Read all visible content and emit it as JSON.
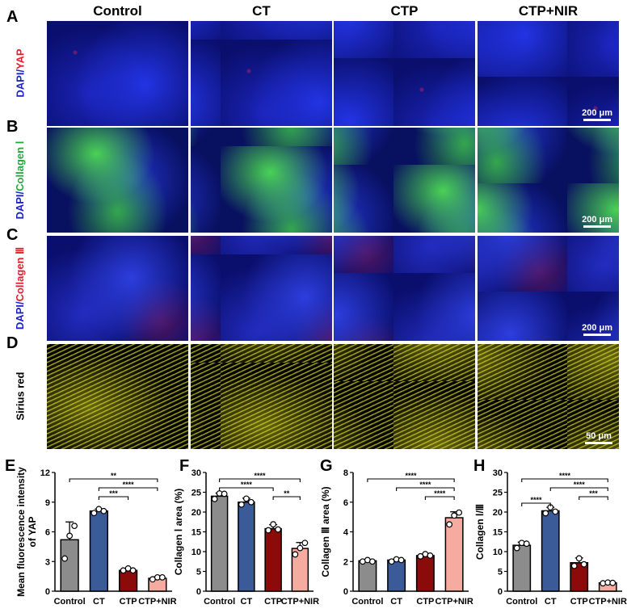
{
  "panel_letters": [
    "A",
    "B",
    "C",
    "D",
    "E",
    "F",
    "G",
    "H"
  ],
  "columns": [
    "Control",
    "CT",
    "CTP",
    "CTP+NIR"
  ],
  "rows": [
    {
      "label_a": "DAPI/",
      "label_b": "YAP",
      "color_b": "#e0202a",
      "style": "fl",
      "scale": "200 μm"
    },
    {
      "label_a": "DAPI/",
      "label_b": "Collagen Ⅰ",
      "color_b": "#22a83a",
      "style": "col1",
      "scale": "200 μm"
    },
    {
      "label_a": "DAPI/",
      "label_b": "Collagen Ⅲ",
      "color_b": "#e0202a",
      "style": "col3",
      "scale": "200 μm"
    },
    {
      "label_a": "",
      "label_b": "Sirius red",
      "color_b": "#000000",
      "style": "sr",
      "scale": "50 μm"
    }
  ],
  "dapi_color": "#1a22c8",
  "chart_data": [
    {
      "type": "bar",
      "letter": "E",
      "ylabel": [
        "Mean fluorescence intensity",
        "of YAP"
      ],
      "categories": [
        "Control",
        "CT",
        "CTP",
        "CTP+NIR"
      ],
      "values": [
        5.2,
        8.1,
        2.1,
        1.3
      ],
      "errors": [
        1.8,
        0.2,
        0.15,
        0.15
      ],
      "points": [
        [
          3.3,
          5.6,
          6.6
        ],
        [
          7.9,
          8.3,
          8.1
        ],
        [
          2.1,
          2.3,
          2.1
        ],
        [
          1.2,
          1.4,
          1.4
        ]
      ],
      "ylim": [
        0,
        12
      ],
      "yticks": [
        0,
        3,
        6,
        9,
        12
      ],
      "significance": [
        {
          "from": 0,
          "to": 3,
          "label": "**"
        },
        {
          "from": 1,
          "to": 3,
          "label": "****"
        },
        {
          "from": 1,
          "to": 2,
          "label": "***"
        }
      ]
    },
    {
      "type": "bar",
      "letter": "F",
      "ylabel": [
        "Collagen  Ⅰ area (%)"
      ],
      "categories": [
        "Control",
        "CT",
        "CTP",
        "CTP+NIR"
      ],
      "values": [
        24.0,
        22.5,
        15.8,
        10.8
      ],
      "errors": [
        0.8,
        1.0,
        1.0,
        1.5
      ],
      "points": [
        [
          23.3,
          24.7,
          24.6
        ],
        [
          21.9,
          23.4,
          22.5
        ],
        [
          15.4,
          16.9,
          15.6
        ],
        [
          9.3,
          10.9,
          12.2
        ]
      ],
      "ylim": [
        0,
        30
      ],
      "yticks": [
        0,
        5,
        10,
        15,
        20,
        25,
        30
      ],
      "significance": [
        {
          "from": 0,
          "to": 3,
          "label": "****"
        },
        {
          "from": 0,
          "to": 2,
          "label": "****"
        },
        {
          "from": 2,
          "to": 3,
          "label": "**"
        }
      ]
    },
    {
      "type": "bar",
      "letter": "G",
      "ylabel": [
        "Collagen Ⅲ area (%)"
      ],
      "categories": [
        "Control",
        "CT",
        "CTP",
        "CTP+NIR"
      ],
      "values": [
        2.05,
        2.1,
        2.4,
        4.95
      ],
      "errors": [
        0.05,
        0.05,
        0.1,
        0.4
      ],
      "points": [
        [
          2.0,
          2.1,
          2.0
        ],
        [
          2.0,
          2.15,
          2.1
        ],
        [
          2.35,
          2.5,
          2.4
        ],
        [
          4.5,
          5.1,
          5.3
        ]
      ],
      "ylim": [
        0,
        8
      ],
      "yticks": [
        0,
        2,
        4,
        6,
        8
      ],
      "significance": [
        {
          "from": 0,
          "to": 3,
          "label": "****"
        },
        {
          "from": 1,
          "to": 3,
          "label": "****"
        },
        {
          "from": 2,
          "to": 3,
          "label": "****"
        }
      ]
    },
    {
      "type": "bar",
      "letter": "H",
      "ylabel": [
        "Collagen Ⅰ/Ⅲ"
      ],
      "categories": [
        "Control",
        "CT",
        "CTP",
        "CTP+NIR"
      ],
      "values": [
        11.6,
        20.3,
        7.2,
        2.1
      ],
      "errors": [
        0.8,
        0.9,
        1.2,
        0.2
      ],
      "points": [
        [
          10.9,
          12.2,
          12.0
        ],
        [
          19.7,
          21.2,
          20.1
        ],
        [
          6.4,
          8.3,
          6.8
        ],
        [
          2.0,
          2.2,
          2.1
        ]
      ],
      "ylim": [
        0,
        30
      ],
      "yticks": [
        0,
        5,
        10,
        15,
        20,
        25,
        30
      ],
      "significance": [
        {
          "from": 0,
          "to": 3,
          "label": "****"
        },
        {
          "from": 1,
          "to": 3,
          "label": "****"
        },
        {
          "from": 2,
          "to": 3,
          "label": "***"
        },
        {
          "from": 0,
          "to": 1,
          "label": "****"
        }
      ]
    }
  ],
  "bar_colors": [
    "#8c8c8c",
    "#3b5b98",
    "#8b0a0a",
    "#f5aba0"
  ]
}
